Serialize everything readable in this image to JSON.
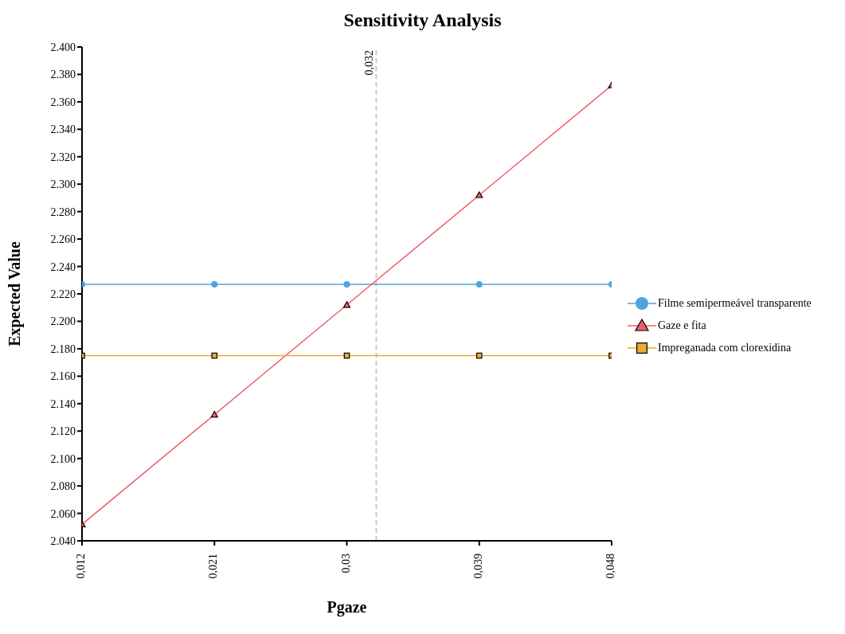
{
  "chart_data": {
    "type": "line",
    "title": "Sensitivity Analysis",
    "xlabel": "Pgaze",
    "ylabel": "Expected Value",
    "x": [
      0.012,
      0.021,
      0.03,
      0.039,
      0.048
    ],
    "series": [
      {
        "name": "Filme semipermeável transparente",
        "color": "#4fa3de",
        "marker": "circle",
        "values": [
          2227,
          2227,
          2227,
          2227,
          2227
        ]
      },
      {
        "name": "Gaze e fita",
        "color": "#f25d6b",
        "marker": "triangle",
        "values": [
          2052,
          2132,
          2212,
          2292,
          2372
        ]
      },
      {
        "name": "Impreganada com clorexidina",
        "color": "#eba935",
        "marker": "square",
        "values": [
          2175,
          2175,
          2175,
          2175,
          2175
        ]
      }
    ],
    "xlim": [
      0.012,
      0.048
    ],
    "xticks": [
      {
        "value": 0.012,
        "label": "0,012"
      },
      {
        "value": 0.021,
        "label": "0,021"
      },
      {
        "value": 0.03,
        "label": "0,03"
      },
      {
        "value": 0.039,
        "label": "0,039"
      },
      {
        "value": 0.048,
        "label": "0,048"
      }
    ],
    "ylim": [
      2040,
      2400
    ],
    "yticks": [
      {
        "value": 2040,
        "label": "2.040"
      },
      {
        "value": 2060,
        "label": "2.060"
      },
      {
        "value": 2080,
        "label": "2.080"
      },
      {
        "value": 2100,
        "label": "2.100"
      },
      {
        "value": 2120,
        "label": "2.120"
      },
      {
        "value": 2140,
        "label": "2.140"
      },
      {
        "value": 2160,
        "label": "2.160"
      },
      {
        "value": 2180,
        "label": "2.180"
      },
      {
        "value": 2200,
        "label": "2.200"
      },
      {
        "value": 2220,
        "label": "2.220"
      },
      {
        "value": 2240,
        "label": "2.240"
      },
      {
        "value": 2260,
        "label": "2.260"
      },
      {
        "value": 2280,
        "label": "2.280"
      },
      {
        "value": 2300,
        "label": "2.300"
      },
      {
        "value": 2320,
        "label": "2.320"
      },
      {
        "value": 2340,
        "label": "2.340"
      },
      {
        "value": 2360,
        "label": "2.360"
      },
      {
        "value": 2380,
        "label": "2.380"
      },
      {
        "value": 2400,
        "label": "2.400"
      }
    ],
    "ref_lines": [
      {
        "axis": "x",
        "value": 0.032,
        "label": "0,032",
        "color": "#c8c8c8",
        "line_style": "dashed"
      }
    ],
    "legend": "right",
    "line_style": "solid"
  }
}
